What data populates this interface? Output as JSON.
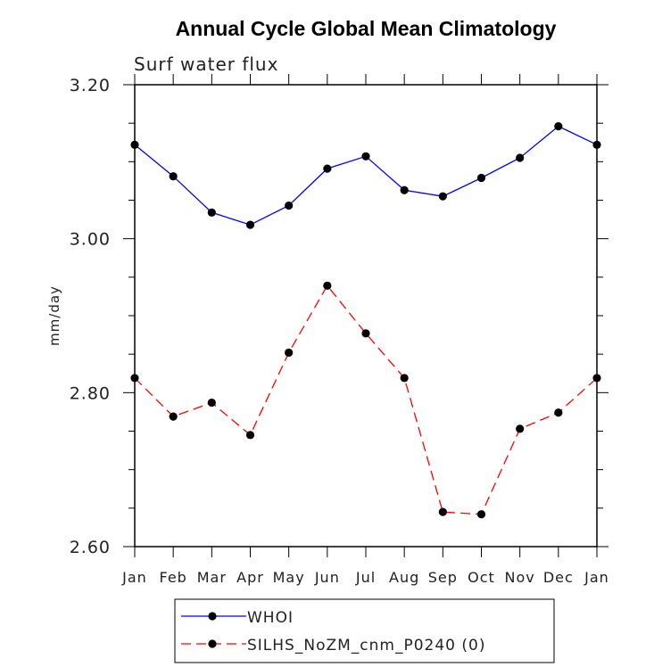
{
  "chart_data": {
    "type": "line",
    "title": "Annual Cycle Global Mean Climatology",
    "subtitle": "Surf water flux",
    "ylabel": "mm/day",
    "xlabel": "",
    "categories": [
      "Jan",
      "Feb",
      "Mar",
      "Apr",
      "May",
      "Jun",
      "Jul",
      "Aug",
      "Sep",
      "Oct",
      "Nov",
      "Dec",
      "Jan"
    ],
    "ylim": [
      2.6,
      3.2
    ],
    "yticks": [
      "2.60",
      "2.80",
      "3.00",
      "3.20"
    ],
    "grid": false,
    "legend_position": "bottom",
    "series": [
      {
        "name": "WHOI",
        "color": "#0000ff",
        "dash": "solid",
        "values": [
          3.122,
          3.081,
          3.034,
          3.018,
          3.043,
          3.091,
          3.107,
          3.063,
          3.055,
          3.079,
          3.105,
          3.146,
          3.122
        ]
      },
      {
        "name": "SILHS_NoZM_cnm_P0240 (0)",
        "color": "#ff0000",
        "dash": "dashed",
        "values": [
          2.819,
          2.769,
          2.787,
          2.745,
          2.852,
          2.939,
          2.877,
          2.819,
          2.645,
          2.642,
          2.753,
          2.774,
          2.819
        ]
      }
    ]
  }
}
